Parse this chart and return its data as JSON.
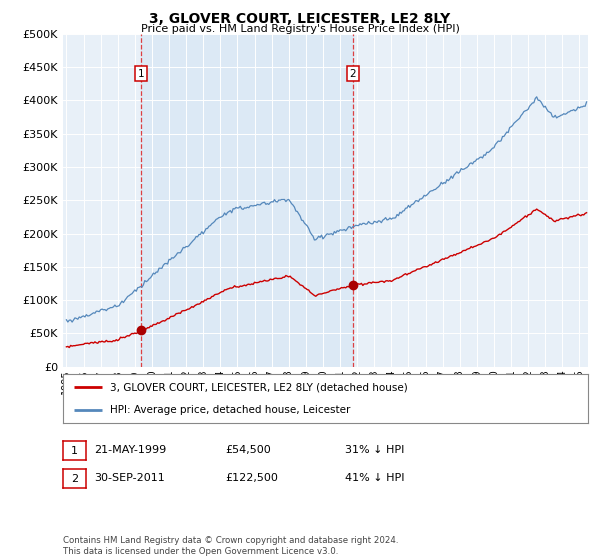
{
  "title": "3, GLOVER COURT, LEICESTER, LE2 8LY",
  "subtitle": "Price paid vs. HM Land Registry's House Price Index (HPI)",
  "ylim": [
    0,
    500000
  ],
  "xlim_start": 1994.8,
  "xlim_end": 2025.5,
  "plot_bg": "#dce9f5",
  "sale1_x": 1999.38,
  "sale1_y": 54500,
  "sale2_x": 2011.75,
  "sale2_y": 122500,
  "legend_line1": "3, GLOVER COURT, LEICESTER, LE2 8LY (detached house)",
  "legend_line2": "HPI: Average price, detached house, Leicester",
  "line_red_color": "#cc0000",
  "line_blue_color": "#5588bb",
  "vline_color": "#dd2222",
  "marker_color": "#aa0000",
  "box_color": "#cc0000",
  "footnote": "Contains HM Land Registry data © Crown copyright and database right 2024.\nThis data is licensed under the Open Government Licence v3.0."
}
